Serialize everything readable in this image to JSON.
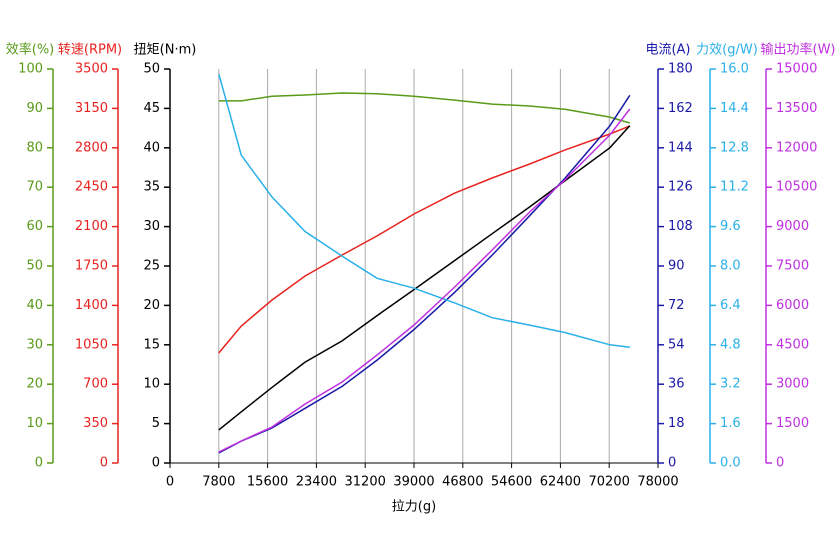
{
  "chart_data": {
    "type": "line",
    "x_label": "拉力(g)",
    "x": [
      7800,
      11400,
      16300,
      21600,
      27500,
      33100,
      39000,
      45500,
      51500,
      57500,
      63100,
      70300,
      73500
    ],
    "xlim": [
      0,
      78000
    ],
    "xticks": [
      0,
      7800,
      15600,
      23400,
      31200,
      39000,
      46800,
      54600,
      62400,
      70200,
      78000
    ],
    "grid": true,
    "series": [
      {
        "name": "效率(%)",
        "color": "#5a9a1a",
        "side": "left",
        "ylim": [
          0,
          100
        ],
        "yticks": [
          0,
          10,
          20,
          30,
          40,
          50,
          60,
          70,
          80,
          90,
          100
        ],
        "values": [
          91.9,
          91.9,
          93.1,
          93.4,
          93.9,
          93.7,
          93.1,
          92.1,
          91.1,
          90.6,
          89.8,
          87.8,
          86.3
        ]
      },
      {
        "name": "转速(RPM)",
        "color": "#e8231f",
        "side": "left",
        "ylim": [
          0,
          3500
        ],
        "yticks": [
          0,
          350,
          700,
          1050,
          1400,
          1750,
          2100,
          2450,
          2800,
          3150,
          3500
        ],
        "values": [
          977,
          1217,
          1448,
          1661,
          1848,
          2017,
          2212,
          2398,
          2532,
          2656,
          2780,
          2923,
          2994
        ]
      },
      {
        "name": "扭矩(N·m)",
        "color": "#000000",
        "side": "left",
        "ylim": [
          0,
          50
        ],
        "yticks": [
          0,
          5,
          10,
          15,
          20,
          25,
          30,
          35,
          40,
          45,
          50
        ],
        "values": [
          4.2,
          6.5,
          9.6,
          12.8,
          15.5,
          18.7,
          22.0,
          25.7,
          29.1,
          32.5,
          35.8,
          40.0,
          42.8
        ]
      },
      {
        "name": "电流(A)",
        "color": "#1a1aa8",
        "side": "right",
        "ylim": [
          0,
          180
        ],
        "yticks": [
          0,
          18,
          36,
          54,
          72,
          90,
          108,
          126,
          144,
          162,
          180
        ],
        "values": [
          4.6,
          10,
          16,
          25,
          35,
          47,
          61,
          78,
          95,
          113,
          130,
          154,
          168
        ]
      },
      {
        "name": "力效(g/W)",
        "color": "#2ab0e8",
        "side": "right",
        "ylim": [
          0,
          16
        ],
        "yticks": [
          {
            "value": 0,
            "label": "0.0"
          },
          1.6,
          3.2,
          4.8,
          6.4,
          {
            "value": 8,
            "label": "8.0"
          },
          9.6,
          11.2,
          12.8,
          14.4,
          {
            "value": 16,
            "label": "16.0"
          }
        ],
        "values": [
          15.8,
          12.5,
          10.8,
          9.4,
          8.4,
          7.5,
          7.1,
          6.5,
          5.9,
          5.6,
          5.3,
          4.8,
          4.7
        ]
      },
      {
        "name": "输出功率(W)",
        "color": "#c030e0",
        "side": "right",
        "ylim": [
          0,
          15000
        ],
        "yticks": [
          0,
          1500,
          3000,
          4500,
          6000,
          7500,
          9000,
          10500,
          12000,
          13500,
          15000
        ],
        "values": [
          419,
          838,
          1371,
          2246,
          3084,
          4112,
          5254,
          6701,
          8109,
          9556,
          10774,
          12487,
          13477
        ]
      }
    ]
  }
}
